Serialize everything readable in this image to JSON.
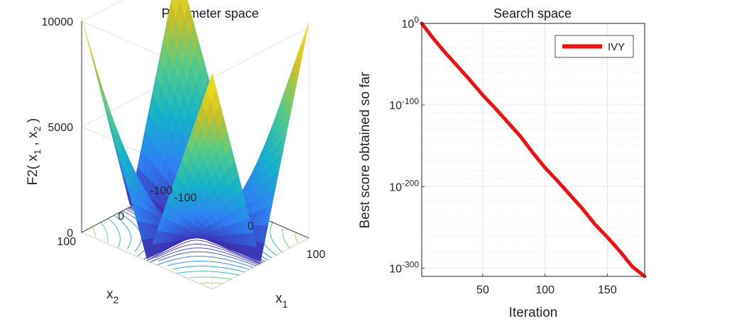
{
  "chart_data": [
    {
      "type": "surface3d",
      "title": "Parameter space",
      "xlabel": "x",
      "xlabel_sub": "1",
      "ylabel": "x",
      "ylabel_sub": "2",
      "zlabel": {
        "pre": "F2( x",
        "s1": "1",
        "mid": " , x",
        "s2": "2",
        "post": " )"
      },
      "x_ticks": [
        "-100",
        "0",
        "100"
      ],
      "y_ticks": [
        "-100",
        "0",
        "100"
      ],
      "z_ticks": [
        "0",
        "5000",
        "10000"
      ],
      "x_range": [
        -100,
        100
      ],
      "y_range": [
        -100,
        100
      ],
      "z_range": [
        0,
        10000
      ],
      "function": "|x1| + |x2| + |x1|*|x2|",
      "contours": true,
      "colormap": [
        "#3e26a8",
        "#2f80f5",
        "#14b3c9",
        "#54cb89",
        "#c8c128",
        "#f9e01c"
      ]
    },
    {
      "type": "line",
      "title": "Search space",
      "xlabel": "Iteration",
      "ylabel": "Best score obtained so far",
      "yscale": "log",
      "x_range": [
        1,
        180
      ],
      "y_range_exp": [
        -310,
        0
      ],
      "x_ticks": [
        "50",
        "100",
        "150"
      ],
      "x_tick_values": [
        50,
        100,
        150
      ],
      "y_ticks": [
        {
          "base": "10",
          "exp": "0"
        },
        {
          "base": "10",
          "exp": "-100"
        },
        {
          "base": "10",
          "exp": "-200"
        },
        {
          "base": "10",
          "exp": "-300"
        }
      ],
      "y_tick_exps": [
        0,
        -100,
        -200,
        -300
      ],
      "grid": true,
      "legend_placement": "top-right",
      "series": [
        {
          "name": "IVY",
          "color": "#ee1111",
          "x": [
            1,
            10,
            20,
            30,
            40,
            50,
            60,
            70,
            80,
            90,
            100,
            110,
            120,
            130,
            140,
            150,
            160,
            170,
            180
          ],
          "log10_y": [
            0,
            -18,
            -36,
            -53,
            -70,
            -88,
            -104,
            -121,
            -138,
            -158,
            -177,
            -193,
            -210,
            -227,
            -246,
            -262,
            -279,
            -298,
            -310
          ]
        }
      ]
    }
  ]
}
